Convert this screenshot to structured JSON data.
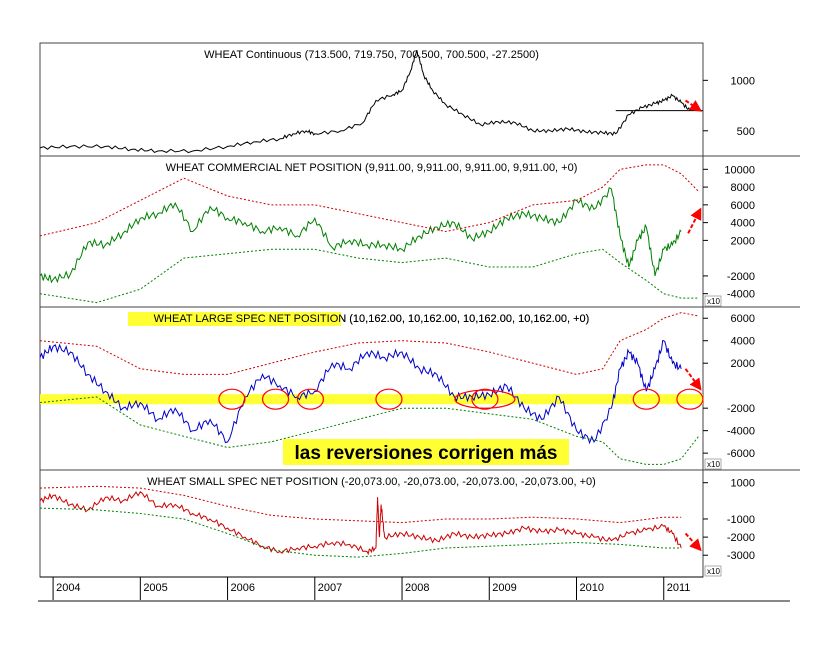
{
  "chart_data": {
    "type": "line",
    "x_years": [
      "2004",
      "2005",
      "2006",
      "2007",
      "2008",
      "2009",
      "2010",
      "2011"
    ],
    "x_domain": [
      2003.85,
      2011.45
    ],
    "annotation": "las reversiones corrigen más",
    "colors": {
      "price": "#000000",
      "commercial": "#008000",
      "large_spec": "#0000cc",
      "small_spec": "#cc0000",
      "upper_band": "#cc0000",
      "lower_band": "#008000",
      "highlight": "#ffff33",
      "arrow": "#ff0000",
      "circle": "#ff0000"
    },
    "panels": [
      {
        "id": "price",
        "title": "WHEAT Continuous (713.500, 719.750, 700.500, 700.500, -27.2500)",
        "ylim": [
          250,
          1370
        ],
        "yticks": [
          500,
          1000
        ],
        "multiplier": "",
        "series": [
          {
            "name": "WHEAT Continuous",
            "role": "price",
            "x": [
              2003.85,
              2004.2,
              2004.6,
              2004.9,
              2005.2,
              2005.6,
              2006.0,
              2006.3,
              2006.6,
              2006.75,
              2006.9,
              2007.0,
              2007.3,
              2007.55,
              2007.7,
              2007.9,
              2008.0,
              2008.1,
              2008.17,
              2008.25,
              2008.35,
              2008.5,
              2008.7,
              2008.9,
              2009.1,
              2009.3,
              2009.5,
              2009.7,
              2009.9,
              2010.1,
              2010.3,
              2010.45,
              2010.6,
              2010.75,
              2010.9,
              2011.0,
              2011.1,
              2011.2,
              2011.3
            ],
            "values": [
              330,
              345,
              345,
              315,
              300,
              300,
              345,
              390,
              420,
              470,
              500,
              470,
              500,
              580,
              800,
              860,
              900,
              1100,
              1300,
              1050,
              900,
              760,
              660,
              560,
              590,
              580,
              500,
              500,
              520,
              490,
              480,
              470,
              660,
              730,
              770,
              800,
              850,
              780,
              700
            ]
          }
        ]
      },
      {
        "id": "commercial",
        "title": "WHEAT COMMERCIAL NET POSITION (9,911.00, 9,911.00, 9,911.00, 9,911.00, +0)",
        "ylim": [
          -5500,
          11500
        ],
        "yticks": [
          -4000,
          -2000,
          2000,
          4000,
          6000,
          8000,
          10000
        ],
        "multiplier": "x10",
        "series": [
          {
            "name": "Commercial net",
            "role": "main",
            "x": [
              2003.85,
              2004.0,
              2004.2,
              2004.4,
              2004.6,
              2004.8,
              2005.0,
              2005.2,
              2005.4,
              2005.6,
              2005.8,
              2006.0,
              2006.2,
              2006.4,
              2006.6,
              2006.8,
              2007.0,
              2007.2,
              2007.4,
              2007.6,
              2007.8,
              2008.0,
              2008.2,
              2008.4,
              2008.6,
              2008.8,
              2009.0,
              2009.2,
              2009.4,
              2009.6,
              2009.8,
              2010.0,
              2010.2,
              2010.4,
              2010.5,
              2010.6,
              2010.7,
              2010.8,
              2010.9,
              2011.0,
              2011.1,
              2011.2
            ],
            "values": [
              -2000,
              -2400,
              -1800,
              1800,
              1500,
              2800,
              4500,
              5000,
              6200,
              3000,
              5800,
              4500,
              4000,
              3000,
              3500,
              2500,
              4500,
              1200,
              2000,
              1500,
              1500,
              1000,
              2500,
              3500,
              4000,
              2200,
              3000,
              4500,
              5000,
              4500,
              4000,
              6500,
              5500,
              7800,
              2500,
              -1000,
              2000,
              3500,
              -2000,
              1000,
              1500,
              3000
            ]
          },
          {
            "name": "Upper band",
            "role": "upper",
            "x": [
              2003.85,
              2004.5,
              2005.0,
              2005.5,
              2006.0,
              2006.5,
              2007.0,
              2007.5,
              2008.0,
              2008.5,
              2009.0,
              2009.5,
              2010.0,
              2010.3,
              2010.5,
              2010.8,
              2011.0,
              2011.2,
              2011.4
            ],
            "values": [
              2500,
              4000,
              6500,
              9000,
              7000,
              6000,
              6000,
              5000,
              4000,
              3000,
              4000,
              6000,
              6500,
              8000,
              10000,
              10500,
              10500,
              9500,
              7500
            ]
          },
          {
            "name": "Lower band",
            "role": "lower",
            "x": [
              2003.85,
              2004.5,
              2005.0,
              2005.5,
              2006.0,
              2006.5,
              2007.0,
              2007.5,
              2008.0,
              2008.5,
              2009.0,
              2009.5,
              2010.0,
              2010.3,
              2010.5,
              2010.8,
              2011.0,
              2011.2,
              2011.4
            ],
            "values": [
              -4000,
              -5000,
              -3500,
              0,
              500,
              1000,
              1000,
              0,
              -500,
              0,
              -1000,
              -1000,
              500,
              1000,
              -500,
              -2500,
              -4000,
              -4500,
              -4500
            ]
          }
        ]
      },
      {
        "id": "large_spec",
        "title": "WHEAT LARGE SPEC NET POSITION (10,162.00, 10,162.00, 10,162.00, 10,162.00, +0)",
        "ylim": [
          -7500,
          7000
        ],
        "yticks": [
          -6000,
          -4000,
          -2000,
          2000,
          4000,
          6000
        ],
        "multiplier": "x10",
        "series": [
          {
            "name": "Large spec net",
            "role": "main",
            "x": [
              2003.85,
              2004.0,
              2004.2,
              2004.4,
              2004.6,
              2004.8,
              2005.0,
              2005.2,
              2005.4,
              2005.6,
              2005.8,
              2006.0,
              2006.2,
              2006.4,
              2006.6,
              2006.8,
              2007.0,
              2007.2,
              2007.4,
              2007.6,
              2007.8,
              2008.0,
              2008.2,
              2008.4,
              2008.6,
              2008.8,
              2009.0,
              2009.2,
              2009.4,
              2009.6,
              2009.8,
              2010.0,
              2010.2,
              2010.4,
              2010.5,
              2010.6,
              2010.7,
              2010.8,
              2010.9,
              2011.0,
              2011.1,
              2011.2
            ],
            "values": [
              2500,
              3500,
              3000,
              1000,
              -500,
              -2000,
              -1500,
              -3000,
              -2000,
              -4000,
              -3000,
              -5000,
              -1000,
              1000,
              0,
              -1000,
              -500,
              2000,
              1500,
              3000,
              2500,
              3000,
              1500,
              1000,
              -1000,
              -1000,
              -800,
              0,
              -2000,
              -3000,
              -1000,
              -4000,
              -5000,
              -2000,
              1500,
              3000,
              2000,
              -500,
              1500,
              4000,
              2000,
              1500
            ]
          },
          {
            "name": "Upper band",
            "role": "upper",
            "x": [
              2003.85,
              2004.5,
              2005.0,
              2005.5,
              2006.0,
              2006.5,
              2007.0,
              2007.5,
              2008.0,
              2008.5,
              2009.0,
              2009.5,
              2010.0,
              2010.3,
              2010.5,
              2010.8,
              2011.0,
              2011.2,
              2011.4
            ],
            "values": [
              4000,
              3500,
              1500,
              1000,
              1000,
              2000,
              3000,
              3800,
              4000,
              3800,
              3000,
              2000,
              1000,
              1500,
              4000,
              5000,
              6000,
              6500,
              6200
            ]
          },
          {
            "name": "Lower band",
            "role": "lower",
            "x": [
              2003.85,
              2004.5,
              2005.0,
              2005.5,
              2006.0,
              2006.5,
              2007.0,
              2007.5,
              2008.0,
              2008.5,
              2009.0,
              2009.5,
              2010.0,
              2010.3,
              2010.5,
              2010.8,
              2011.0,
              2011.2,
              2011.4
            ],
            "values": [
              -1500,
              -1000,
              -3500,
              -4500,
              -5500,
              -5000,
              -4000,
              -3000,
              -2000,
              -2000,
              -2500,
              -3000,
              -4500,
              -5000,
              -6500,
              -7000,
              -7000,
              -6500,
              -4500
            ]
          }
        ]
      },
      {
        "id": "small_spec",
        "title": "WHEAT SMALL SPEC NET POSITION (-20,073.00, -20,073.00, -20,073.00, -20,073.00, +0)",
        "ylim": [
          -4200,
          1700
        ],
        "yticks": [
          -3000,
          -2000,
          -1000,
          1000
        ],
        "multiplier": "x10",
        "series": [
          {
            "name": "Small spec net",
            "role": "main",
            "x": [
              2003.85,
              2004.0,
              2004.2,
              2004.4,
              2004.6,
              2004.8,
              2005.0,
              2005.2,
              2005.4,
              2005.6,
              2005.8,
              2006.0,
              2006.2,
              2006.4,
              2006.6,
              2006.8,
              2007.0,
              2007.2,
              2007.4,
              2007.6,
              2007.7,
              2007.72,
              2007.74,
              2007.76,
              2007.8,
              2008.0,
              2008.2,
              2008.4,
              2008.6,
              2008.8,
              2009.0,
              2009.2,
              2009.4,
              2009.6,
              2009.8,
              2010.0,
              2010.2,
              2010.4,
              2010.6,
              2010.8,
              2011.0,
              2011.1,
              2011.2
            ],
            "values": [
              0,
              300,
              -200,
              -500,
              200,
              0,
              500,
              -300,
              -200,
              -700,
              -1000,
              -1500,
              -2000,
              -2500,
              -2800,
              -2600,
              -2500,
              -2300,
              -2400,
              -2800,
              -2600,
              200,
              -2000,
              -200,
              -2000,
              -1800,
              -2000,
              -2200,
              -1800,
              -2000,
              -1900,
              -1800,
              -1500,
              -1700,
              -1600,
              -1800,
              -2000,
              -2200,
              -1800,
              -1600,
              -1400,
              -1800,
              -2600
            ]
          },
          {
            "name": "Upper band",
            "role": "upper",
            "x": [
              2003.85,
              2004.5,
              2005.0,
              2005.5,
              2006.0,
              2006.5,
              2007.0,
              2007.5,
              2008.0,
              2008.5,
              2009.0,
              2009.5,
              2010.0,
              2010.5,
              2011.0,
              2011.2
            ],
            "values": [
              700,
              800,
              700,
              300,
              -300,
              -800,
              -1000,
              -1100,
              -1200,
              -1000,
              -1000,
              -900,
              -1000,
              -1200,
              -900,
              -900
            ]
          },
          {
            "name": "Lower band",
            "role": "lower",
            "x": [
              2003.85,
              2004.5,
              2005.0,
              2005.5,
              2006.0,
              2006.5,
              2007.0,
              2007.5,
              2008.0,
              2008.5,
              2009.0,
              2009.5,
              2010.0,
              2010.5,
              2011.0,
              2011.2
            ],
            "values": [
              -400,
              -500,
              -700,
              -1000,
              -1800,
              -2700,
              -3000,
              -3100,
              -2900,
              -2600,
              -2500,
              -2400,
              -2300,
              -2400,
              -2600,
              -2600
            ]
          }
        ]
      }
    ],
    "markers": {
      "large_spec_highlight_level": -1200,
      "large_spec_circles": [
        2006.05,
        2006.55,
        2006.95,
        2007.85,
        2008.95,
        2010.8,
        2011.3
      ],
      "arrows": [
        {
          "panel": "price",
          "from_x": 2011.25,
          "from_y": 800,
          "to_x": 2011.42,
          "to_y": 700
        },
        {
          "panel": "commercial",
          "from_x": 2011.28,
          "from_y": 2800,
          "to_x": 2011.42,
          "to_y": 5500
        },
        {
          "panel": "large_spec",
          "from_x": 2011.25,
          "from_y": 1500,
          "to_x": 2011.42,
          "to_y": -300
        },
        {
          "panel": "small_spec",
          "from_x": 2011.25,
          "from_y": -1800,
          "to_x": 2011.42,
          "to_y": -2700
        }
      ]
    }
  }
}
